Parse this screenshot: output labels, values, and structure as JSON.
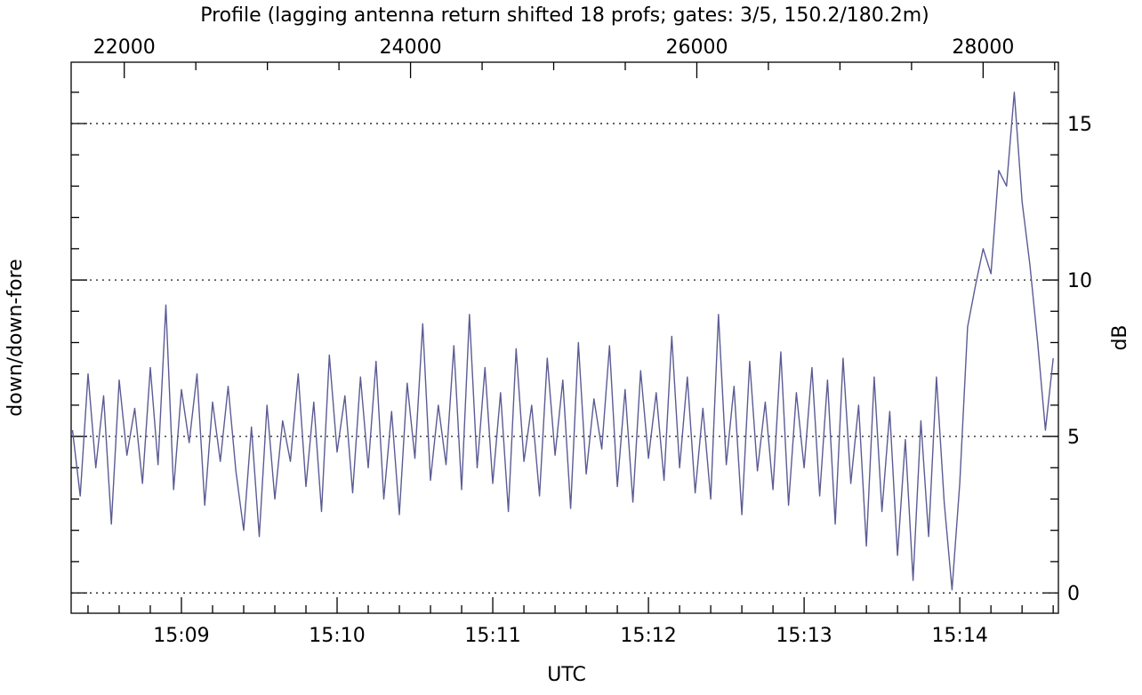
{
  "chart_data": {
    "type": "line",
    "title": "Profile (lagging antenna return shifted 18 profs; gates: 3/5, 150.2/180.2m)",
    "xlabel": "UTC",
    "ylabel": "down/down-fore",
    "y2label": "dB",
    "x": [
      498,
      501,
      504,
      507,
      510,
      513,
      516,
      519,
      522,
      525,
      528,
      531,
      534,
      537,
      540,
      543,
      546,
      549,
      552,
      555,
      558,
      561,
      564,
      567,
      570,
      573,
      576,
      579,
      582,
      585,
      588,
      591,
      594,
      597,
      600,
      603,
      606,
      609,
      612,
      615,
      618,
      621,
      624,
      627,
      630,
      633,
      636,
      639,
      642,
      645,
      648,
      651,
      654,
      657,
      660,
      663,
      666,
      669,
      672,
      675,
      678,
      681,
      684,
      687,
      690,
      693,
      696,
      699,
      702,
      705,
      708,
      711,
      714,
      717,
      720,
      723,
      726,
      729,
      732,
      735,
      738,
      741,
      744,
      747,
      750,
      753,
      756,
      759,
      762,
      765,
      768,
      771,
      774,
      777,
      780,
      783,
      786,
      789,
      792,
      795,
      798,
      801,
      804,
      807,
      810,
      813,
      816,
      819,
      822,
      825,
      828,
      831,
      834,
      837,
      840,
      843,
      846,
      849,
      852,
      855,
      858,
      861,
      864,
      867,
      870,
      873,
      876
    ],
    "series": [
      {
        "name": "down/down-fore",
        "color": "#5b5b94",
        "values": [
          5.2,
          3.1,
          7.0,
          4.0,
          6.3,
          2.2,
          6.8,
          4.4,
          5.9,
          3.5,
          7.2,
          4.1,
          9.2,
          3.3,
          6.5,
          4.8,
          7.0,
          2.8,
          6.1,
          4.2,
          6.6,
          3.9,
          2.0,
          5.3,
          1.8,
          6.0,
          3.0,
          5.5,
          4.2,
          7.0,
          3.4,
          6.1,
          2.6,
          7.6,
          4.5,
          6.3,
          3.2,
          6.9,
          4.0,
          7.4,
          3.0,
          5.8,
          2.5,
          6.7,
          4.3,
          8.6,
          3.6,
          6.0,
          4.1,
          7.9,
          3.3,
          8.9,
          4.0,
          7.2,
          3.5,
          6.4,
          2.6,
          7.8,
          4.2,
          6.0,
          3.1,
          7.5,
          4.4,
          6.8,
          2.7,
          8.0,
          3.8,
          6.2,
          4.6,
          7.9,
          3.4,
          6.5,
          2.9,
          7.1,
          4.3,
          6.4,
          3.6,
          8.2,
          4.0,
          6.9,
          3.2,
          5.9,
          3.0,
          8.9,
          4.1,
          6.6,
          2.5,
          7.4,
          3.9,
          6.1,
          3.3,
          7.7,
          2.8,
          6.4,
          4.0,
          7.2,
          3.1,
          6.8,
          2.2,
          7.5,
          3.5,
          6.0,
          1.5,
          6.9,
          2.6,
          5.8,
          1.2,
          4.9,
          0.4,
          5.5,
          1.8,
          6.9,
          2.9,
          0.1,
          3.5,
          8.5,
          9.8,
          11.0,
          10.2,
          13.5,
          13.0,
          16.0,
          12.5,
          10.5,
          8.0,
          5.2,
          7.5
        ]
      }
    ],
    "xlim": [
      497.5,
      878
    ],
    "xticks": [
      {
        "value": 540,
        "label": "15:09"
      },
      {
        "value": 600,
        "label": "15:10"
      },
      {
        "value": 660,
        "label": "15:11"
      },
      {
        "value": 720,
        "label": "15:12"
      },
      {
        "value": 780,
        "label": "15:13"
      },
      {
        "value": 840,
        "label": "15:14"
      }
    ],
    "xminorticks": [
      504,
      516,
      528,
      552,
      564,
      576,
      588,
      612,
      624,
      636,
      648,
      672,
      684,
      696,
      708,
      732,
      744,
      756,
      768,
      792,
      804,
      816,
      828,
      852,
      864,
      876
    ],
    "x2lim": [
      21629,
      28526
    ],
    "x2ticks": [
      22000,
      24000,
      26000,
      28000
    ],
    "x2minorticks": [
      22500,
      23000,
      23500,
      24500,
      25000,
      25500,
      26500,
      27000,
      27500,
      28500
    ],
    "ylim": [
      -0.65,
      16.96
    ],
    "yticks": [
      0,
      5,
      10,
      15
    ],
    "yminorticks": [
      1,
      2,
      3,
      4,
      6,
      7,
      8,
      9,
      11,
      12,
      13,
      14,
      16
    ],
    "grid": true
  }
}
